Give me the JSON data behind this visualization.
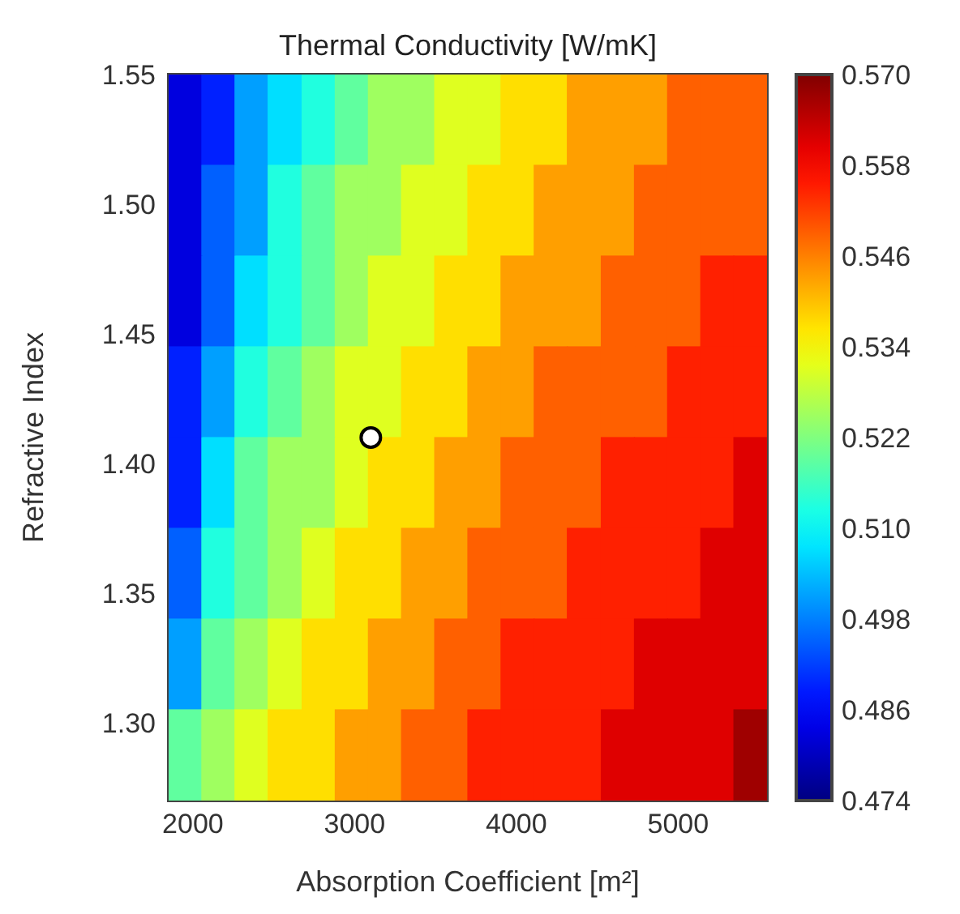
{
  "chart_data": {
    "type": "heatmap",
    "title": "Thermal Conductivity [W/mK]",
    "xlabel": "Absorption Coefficient [m²]",
    "ylabel": "Refractive Index",
    "x": [
      1950,
      2160,
      2360,
      2570,
      2780,
      2980,
      3190,
      3390,
      3600,
      3800,
      4010,
      4210,
      4420,
      4630,
      4830,
      5040,
      5240,
      5450
    ],
    "y": [
      1.53,
      1.5,
      1.46,
      1.43,
      1.39,
      1.36,
      1.32,
      1.29
    ],
    "cells": [
      [
        0.483,
        0.489,
        0.501,
        0.507,
        0.513,
        0.519,
        0.525,
        0.525,
        0.531,
        0.531,
        0.537,
        0.537,
        0.543,
        0.543,
        0.543,
        0.549,
        0.549,
        0.549
      ],
      [
        0.483,
        0.495,
        0.501,
        0.513,
        0.519,
        0.525,
        0.525,
        0.531,
        0.531,
        0.537,
        0.537,
        0.543,
        0.543,
        0.543,
        0.549,
        0.549,
        0.549,
        0.549
      ],
      [
        0.483,
        0.495,
        0.507,
        0.513,
        0.519,
        0.525,
        0.531,
        0.531,
        0.537,
        0.537,
        0.543,
        0.543,
        0.543,
        0.549,
        0.549,
        0.549,
        0.555,
        0.555
      ],
      [
        0.489,
        0.501,
        0.513,
        0.519,
        0.525,
        0.531,
        0.531,
        0.537,
        0.537,
        0.543,
        0.543,
        0.549,
        0.549,
        0.549,
        0.549,
        0.555,
        0.555,
        0.555
      ],
      [
        0.489,
        0.507,
        0.519,
        0.525,
        0.525,
        0.531,
        0.537,
        0.537,
        0.543,
        0.543,
        0.549,
        0.549,
        0.549,
        0.555,
        0.555,
        0.555,
        0.555,
        0.561
      ],
      [
        0.495,
        0.513,
        0.519,
        0.525,
        0.531,
        0.537,
        0.537,
        0.543,
        0.543,
        0.549,
        0.549,
        0.549,
        0.555,
        0.555,
        0.555,
        0.555,
        0.561,
        0.561
      ],
      [
        0.501,
        0.519,
        0.525,
        0.531,
        0.537,
        0.537,
        0.543,
        0.543,
        0.549,
        0.549,
        0.555,
        0.555,
        0.555,
        0.555,
        0.561,
        0.561,
        0.561,
        0.561
      ],
      [
        0.519,
        0.525,
        0.531,
        0.537,
        0.537,
        0.543,
        0.543,
        0.549,
        0.549,
        0.555,
        0.555,
        0.555,
        0.555,
        0.561,
        0.561,
        0.561,
        0.561,
        0.567
      ]
    ],
    "xlim": [
      1850,
      5550
    ],
    "xticks": [
      2000,
      3000,
      4000,
      5000
    ],
    "ylim": [
      1.27,
      1.55
    ],
    "yticks": [
      {
        "value": 1.3,
        "label": "1.30"
      },
      1.35,
      {
        "value": 1.4,
        "label": "1.40"
      },
      1.45,
      {
        "value": 1.5,
        "label": "1.50"
      },
      1.55
    ],
    "clim": [
      0.474,
      0.57
    ],
    "cticks": [
      0.474,
      0.486,
      0.498,
      {
        "value": 0.51,
        "label": "0.510"
      },
      0.522,
      0.534,
      0.546,
      0.558,
      {
        "value": 0.57,
        "label": "0.570"
      }
    ],
    "series": [
      {
        "type": "scatter",
        "x": [
          3100
        ],
        "values": [
          1.41
        ],
        "color": "#000000"
      }
    ],
    "marker": "circle"
  }
}
